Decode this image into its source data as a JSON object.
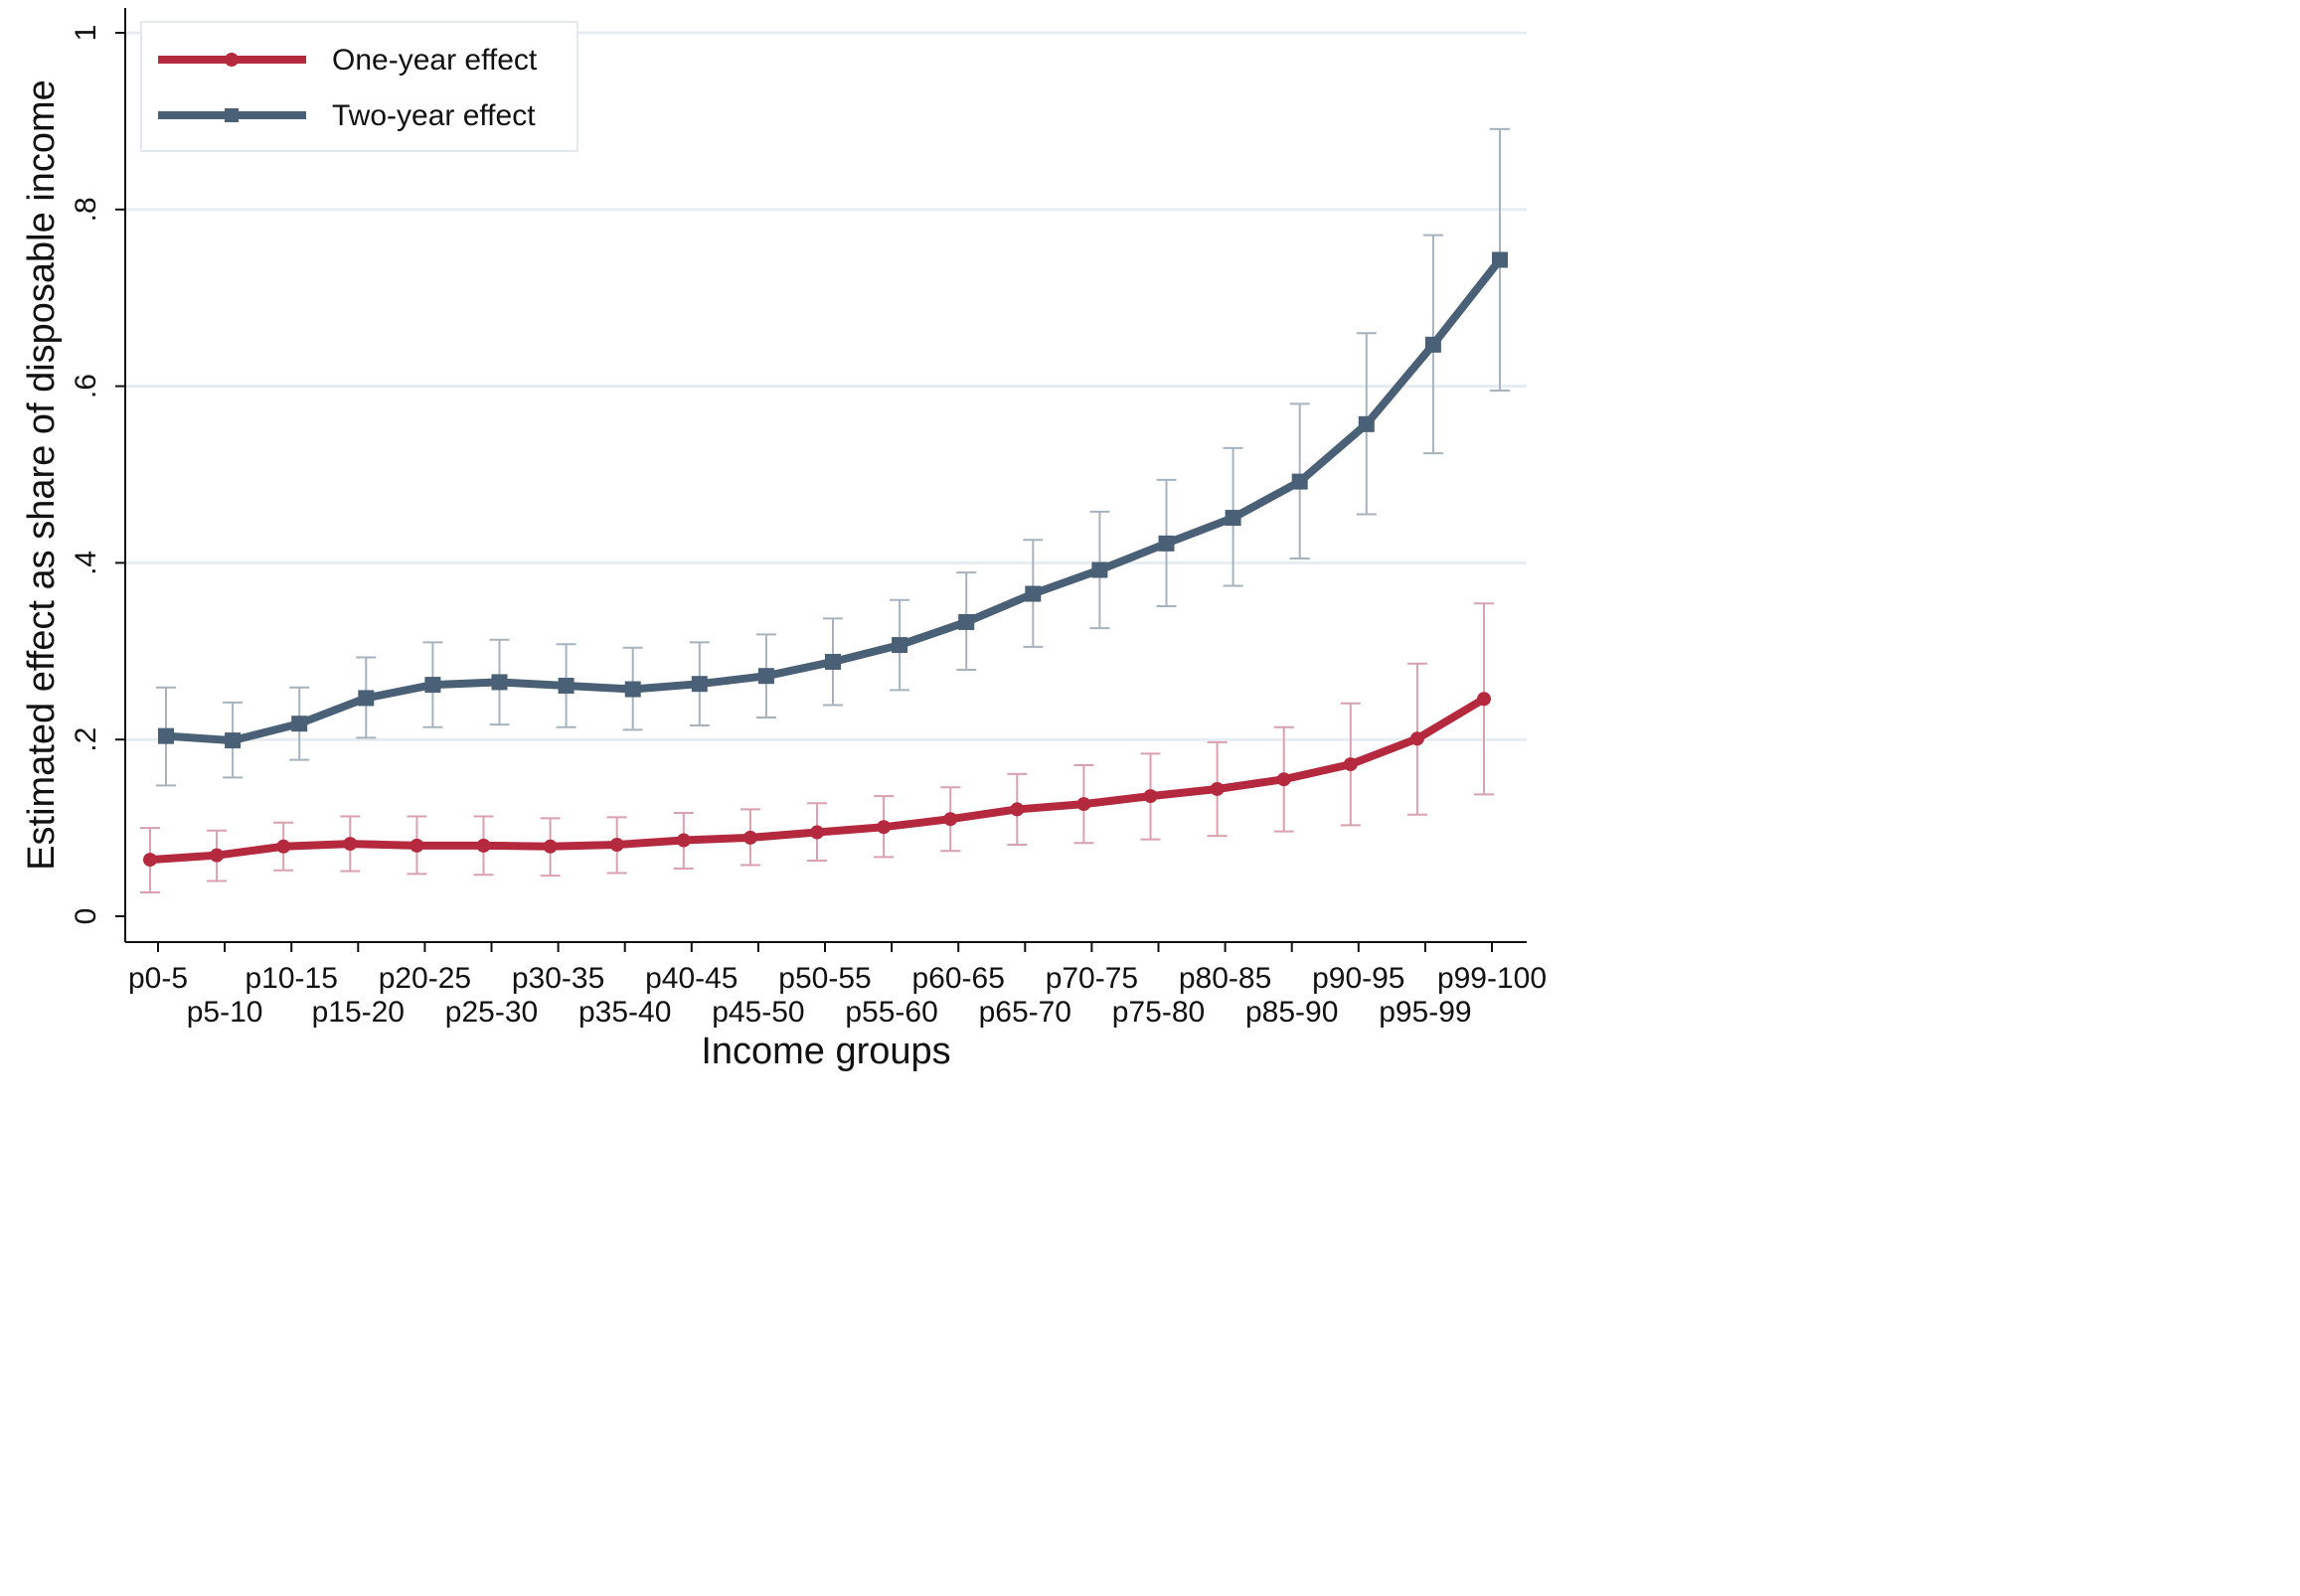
{
  "chart_data": {
    "type": "line",
    "title": "",
    "xlabel": "Income groups",
    "ylabel": "Estimated effect as share of disposable income",
    "ylim": [
      0,
      1
    ],
    "yticks": [
      0,
      0.2,
      0.4,
      0.6,
      0.8,
      1
    ],
    "ytick_labels": [
      "0",
      ".2",
      ".4",
      ".6",
      ".8",
      "1"
    ],
    "grid": "horizontal",
    "legend_position": "top-left",
    "categories": [
      "p0-5",
      "p5-10",
      "p10-15",
      "p15-20",
      "p20-25",
      "p25-30",
      "p30-35",
      "p35-40",
      "p40-45",
      "p45-50",
      "p50-55",
      "p55-60",
      "p60-65",
      "p65-70",
      "p70-75",
      "p75-80",
      "p80-85",
      "p85-90",
      "p90-95",
      "p95-99",
      "p99-100"
    ],
    "series": [
      {
        "name": "One-year effect",
        "color": "#b5293e",
        "error_color": "#d9a0ae",
        "marker": "circle",
        "values": [
          0.064,
          0.069,
          0.079,
          0.082,
          0.08,
          0.08,
          0.079,
          0.081,
          0.086,
          0.089,
          0.095,
          0.101,
          0.11,
          0.121,
          0.127,
          0.136,
          0.144,
          0.155,
          0.172,
          0.201,
          0.246
        ],
        "lower": [
          0.027,
          0.04,
          0.052,
          0.051,
          0.048,
          0.047,
          0.046,
          0.049,
          0.054,
          0.058,
          0.063,
          0.067,
          0.074,
          0.081,
          0.083,
          0.087,
          0.091,
          0.096,
          0.103,
          0.115,
          0.138
        ],
        "upper": [
          0.1,
          0.097,
          0.106,
          0.113,
          0.113,
          0.113,
          0.111,
          0.112,
          0.117,
          0.121,
          0.128,
          0.136,
          0.146,
          0.161,
          0.171,
          0.184,
          0.197,
          0.214,
          0.241,
          0.286,
          0.354
        ]
      },
      {
        "name": "Two-year effect",
        "color": "#4a6076",
        "error_color": "#a6b3bf",
        "marker": "square",
        "values": [
          0.204,
          0.199,
          0.218,
          0.247,
          0.262,
          0.265,
          0.261,
          0.257,
          0.263,
          0.272,
          0.288,
          0.307,
          0.333,
          0.365,
          0.392,
          0.422,
          0.451,
          0.492,
          0.557,
          0.647,
          0.743
        ],
        "lower": [
          0.148,
          0.157,
          0.177,
          0.202,
          0.214,
          0.217,
          0.214,
          0.211,
          0.216,
          0.225,
          0.239,
          0.256,
          0.279,
          0.305,
          0.326,
          0.351,
          0.374,
          0.405,
          0.455,
          0.524,
          0.595
        ],
        "upper": [
          0.259,
          0.242,
          0.259,
          0.293,
          0.31,
          0.313,
          0.308,
          0.304,
          0.31,
          0.319,
          0.337,
          0.358,
          0.389,
          0.426,
          0.458,
          0.494,
          0.53,
          0.58,
          0.66,
          0.771,
          0.891
        ]
      }
    ]
  }
}
